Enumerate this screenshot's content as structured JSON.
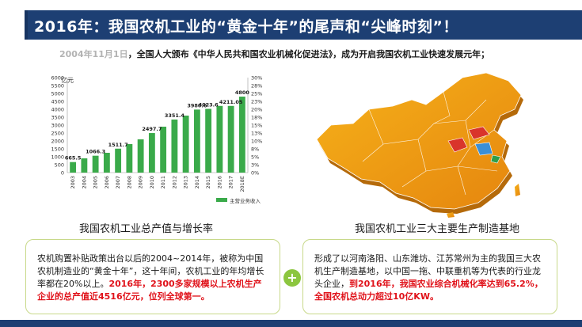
{
  "header": {
    "title": "2016年：我国农机工业的“黄金十年”的尾声和“尖峰时刻”！"
  },
  "intro": {
    "year": "2004年11月1日",
    "text": "，全国人大颁布《中华人民共和国农业机械化促进法》，成为开启我国农机工业快速发展元年；"
  },
  "chart_data": {
    "type": "bar",
    "categories": [
      "2003",
      "2004",
      "2005",
      "2006",
      "2007",
      "2008",
      "2009",
      "2010",
      "2011",
      "2012",
      "2013",
      "2014",
      "2015",
      "2016",
      "2017",
      "2018E"
    ],
    "series": [
      {
        "name": "主营业务收入",
        "values": [
          665.5,
          900,
          1066.3,
          1250,
          1511.7,
          1800,
          2100,
          2497.7,
          2900,
          3351.4,
          3600,
          3980.6,
          4023.6,
          4211,
          4211.05,
          4800
        ]
      }
    ],
    "data_labels": {
      "0": "665.5",
      "2": "1066.3",
      "4": "1511.7",
      "7": "2497.7",
      "9": "3351.4",
      "11": "3980.6",
      "12": "4023.6",
      "14": "4211.05",
      "15": "4800"
    },
    "ylim": [
      0,
      6000
    ],
    "yticks": [
      "0",
      "500",
      "1000",
      "1500",
      "2000",
      "2500",
      "3000",
      "3500",
      "4000",
      "4500",
      "5000",
      "5500",
      "6000"
    ],
    "y2ticks": [
      "0%",
      "3%",
      "5%",
      "8%",
      "10%",
      "13%",
      "15%",
      "18%",
      "20%",
      "23%",
      "25%",
      "28%",
      "30%"
    ],
    "ylabel": "亿元",
    "bar_color": "#3aaa4a"
  },
  "captions": {
    "left": "我国农机工业总产值与增长率",
    "right": "我国农机工业三大主要生产制造基地"
  },
  "box_left": {
    "normal": "农机购置补贴政策出台以后的2004~2014年，被称为中国农机制造业的“黄金十年”，这十年间，农机工业的年均增长率都在20%以上。",
    "highlight": "2016年，2300多家规模以上农机生产企业的总产值近4516亿元，位列全球第一。"
  },
  "box_right": {
    "normal": "形成了以河南洛阳、山东潍坊、江苏常州为主的我国三大农机生产制造基地，以中国一拖、中联重机等为代表的行业龙头企业，",
    "highlight": "到2016年，我国农业综合机械化率达到65.2%，全国农机总动力超过10亿KW。"
  },
  "plus_symbol": "+"
}
